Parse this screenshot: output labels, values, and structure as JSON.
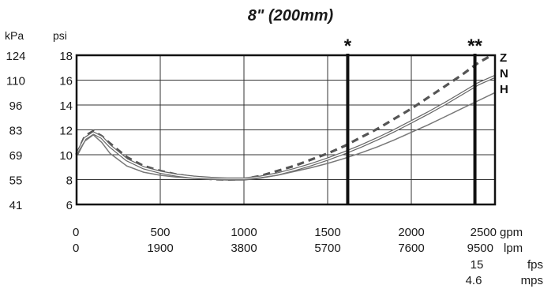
{
  "chart_data": {
    "type": "line",
    "title": "8\" (200mm)",
    "x_ticks": {
      "gpm": [
        "0",
        "500",
        "1000",
        "1500",
        "2000",
        "2500"
      ],
      "lpm": [
        "0",
        "1900",
        "3800",
        "5700",
        "7600",
        "9500"
      ]
    },
    "x_units": {
      "gpm": "gpm",
      "lpm": "lpm",
      "fps": "fps",
      "mps": "mps"
    },
    "velocity_ticks": {
      "fps": "15",
      "mps": "4.6"
    },
    "y_ticks": {
      "psi": [
        "18",
        "16",
        "14",
        "12",
        "10",
        "8",
        "6"
      ],
      "kpa": [
        "124",
        "110",
        "96",
        "83",
        "69",
        "55",
        "41"
      ]
    },
    "y_units": {
      "kpa": "kPa",
      "psi": "psi"
    },
    "xlim": [
      0,
      2500
    ],
    "ylim": [
      6,
      18
    ],
    "grid": true,
    "markers": [
      {
        "label": "*",
        "x": 1620
      },
      {
        "label": "**",
        "x": 2380
      }
    ],
    "series": [
      {
        "name": "Z",
        "style": "dashed",
        "color": "#555555",
        "points": [
          [
            0,
            10
          ],
          [
            50,
            11.5
          ],
          [
            100,
            11.9
          ],
          [
            150,
            11.5
          ],
          [
            200,
            10.9
          ],
          [
            300,
            9.8
          ],
          [
            400,
            9.1
          ],
          [
            500,
            8.7
          ],
          [
            600,
            8.4
          ],
          [
            700,
            8.2
          ],
          [
            800,
            8.05
          ],
          [
            900,
            8
          ],
          [
            1000,
            8.05
          ],
          [
            1100,
            8.3
          ],
          [
            1200,
            8.7
          ],
          [
            1300,
            9.1
          ],
          [
            1400,
            9.6
          ],
          [
            1500,
            10.1
          ],
          [
            1600,
            10.7
          ],
          [
            1700,
            11.4
          ],
          [
            1800,
            12.1
          ],
          [
            1900,
            12.9
          ],
          [
            2000,
            13.7
          ],
          [
            2100,
            14.6
          ],
          [
            2200,
            15.5
          ],
          [
            2300,
            16.4
          ],
          [
            2400,
            17.4
          ],
          [
            2480,
            18
          ]
        ]
      },
      {
        "name": "N",
        "style": "double",
        "color": "#666666",
        "points": [
          [
            0,
            10
          ],
          [
            50,
            11.3
          ],
          [
            100,
            11.75
          ],
          [
            150,
            11.4
          ],
          [
            200,
            10.7
          ],
          [
            300,
            9.6
          ],
          [
            400,
            8.95
          ],
          [
            500,
            8.6
          ],
          [
            600,
            8.35
          ],
          [
            700,
            8.2
          ],
          [
            800,
            8.1
          ],
          [
            900,
            8.05
          ],
          [
            1000,
            8.05
          ],
          [
            1100,
            8.2
          ],
          [
            1200,
            8.45
          ],
          [
            1300,
            8.8
          ],
          [
            1400,
            9.2
          ],
          [
            1500,
            9.65
          ],
          [
            1600,
            10.15
          ],
          [
            1700,
            10.7
          ],
          [
            1800,
            11.3
          ],
          [
            1900,
            11.95
          ],
          [
            2000,
            12.65
          ],
          [
            2100,
            13.35
          ],
          [
            2200,
            14.1
          ],
          [
            2300,
            14.9
          ],
          [
            2400,
            15.7
          ],
          [
            2500,
            16.3
          ]
        ]
      },
      {
        "name": "H",
        "style": "solid",
        "color": "#777777",
        "points": [
          [
            0,
            10
          ],
          [
            50,
            11.1
          ],
          [
            100,
            11.6
          ],
          [
            150,
            11
          ],
          [
            200,
            10.1
          ],
          [
            300,
            9.1
          ],
          [
            400,
            8.6
          ],
          [
            500,
            8.35
          ],
          [
            600,
            8.2
          ],
          [
            700,
            8.1
          ],
          [
            800,
            8.05
          ],
          [
            900,
            8
          ],
          [
            1000,
            8
          ],
          [
            1100,
            8.15
          ],
          [
            1200,
            8.35
          ],
          [
            1300,
            8.65
          ],
          [
            1400,
            8.95
          ],
          [
            1500,
            9.3
          ],
          [
            1600,
            9.7
          ],
          [
            1700,
            10.15
          ],
          [
            1800,
            10.65
          ],
          [
            1900,
            11.2
          ],
          [
            2000,
            11.8
          ],
          [
            2100,
            12.4
          ],
          [
            2200,
            13.05
          ],
          [
            2300,
            13.7
          ],
          [
            2400,
            14.35
          ],
          [
            2500,
            15
          ]
        ]
      }
    ]
  }
}
